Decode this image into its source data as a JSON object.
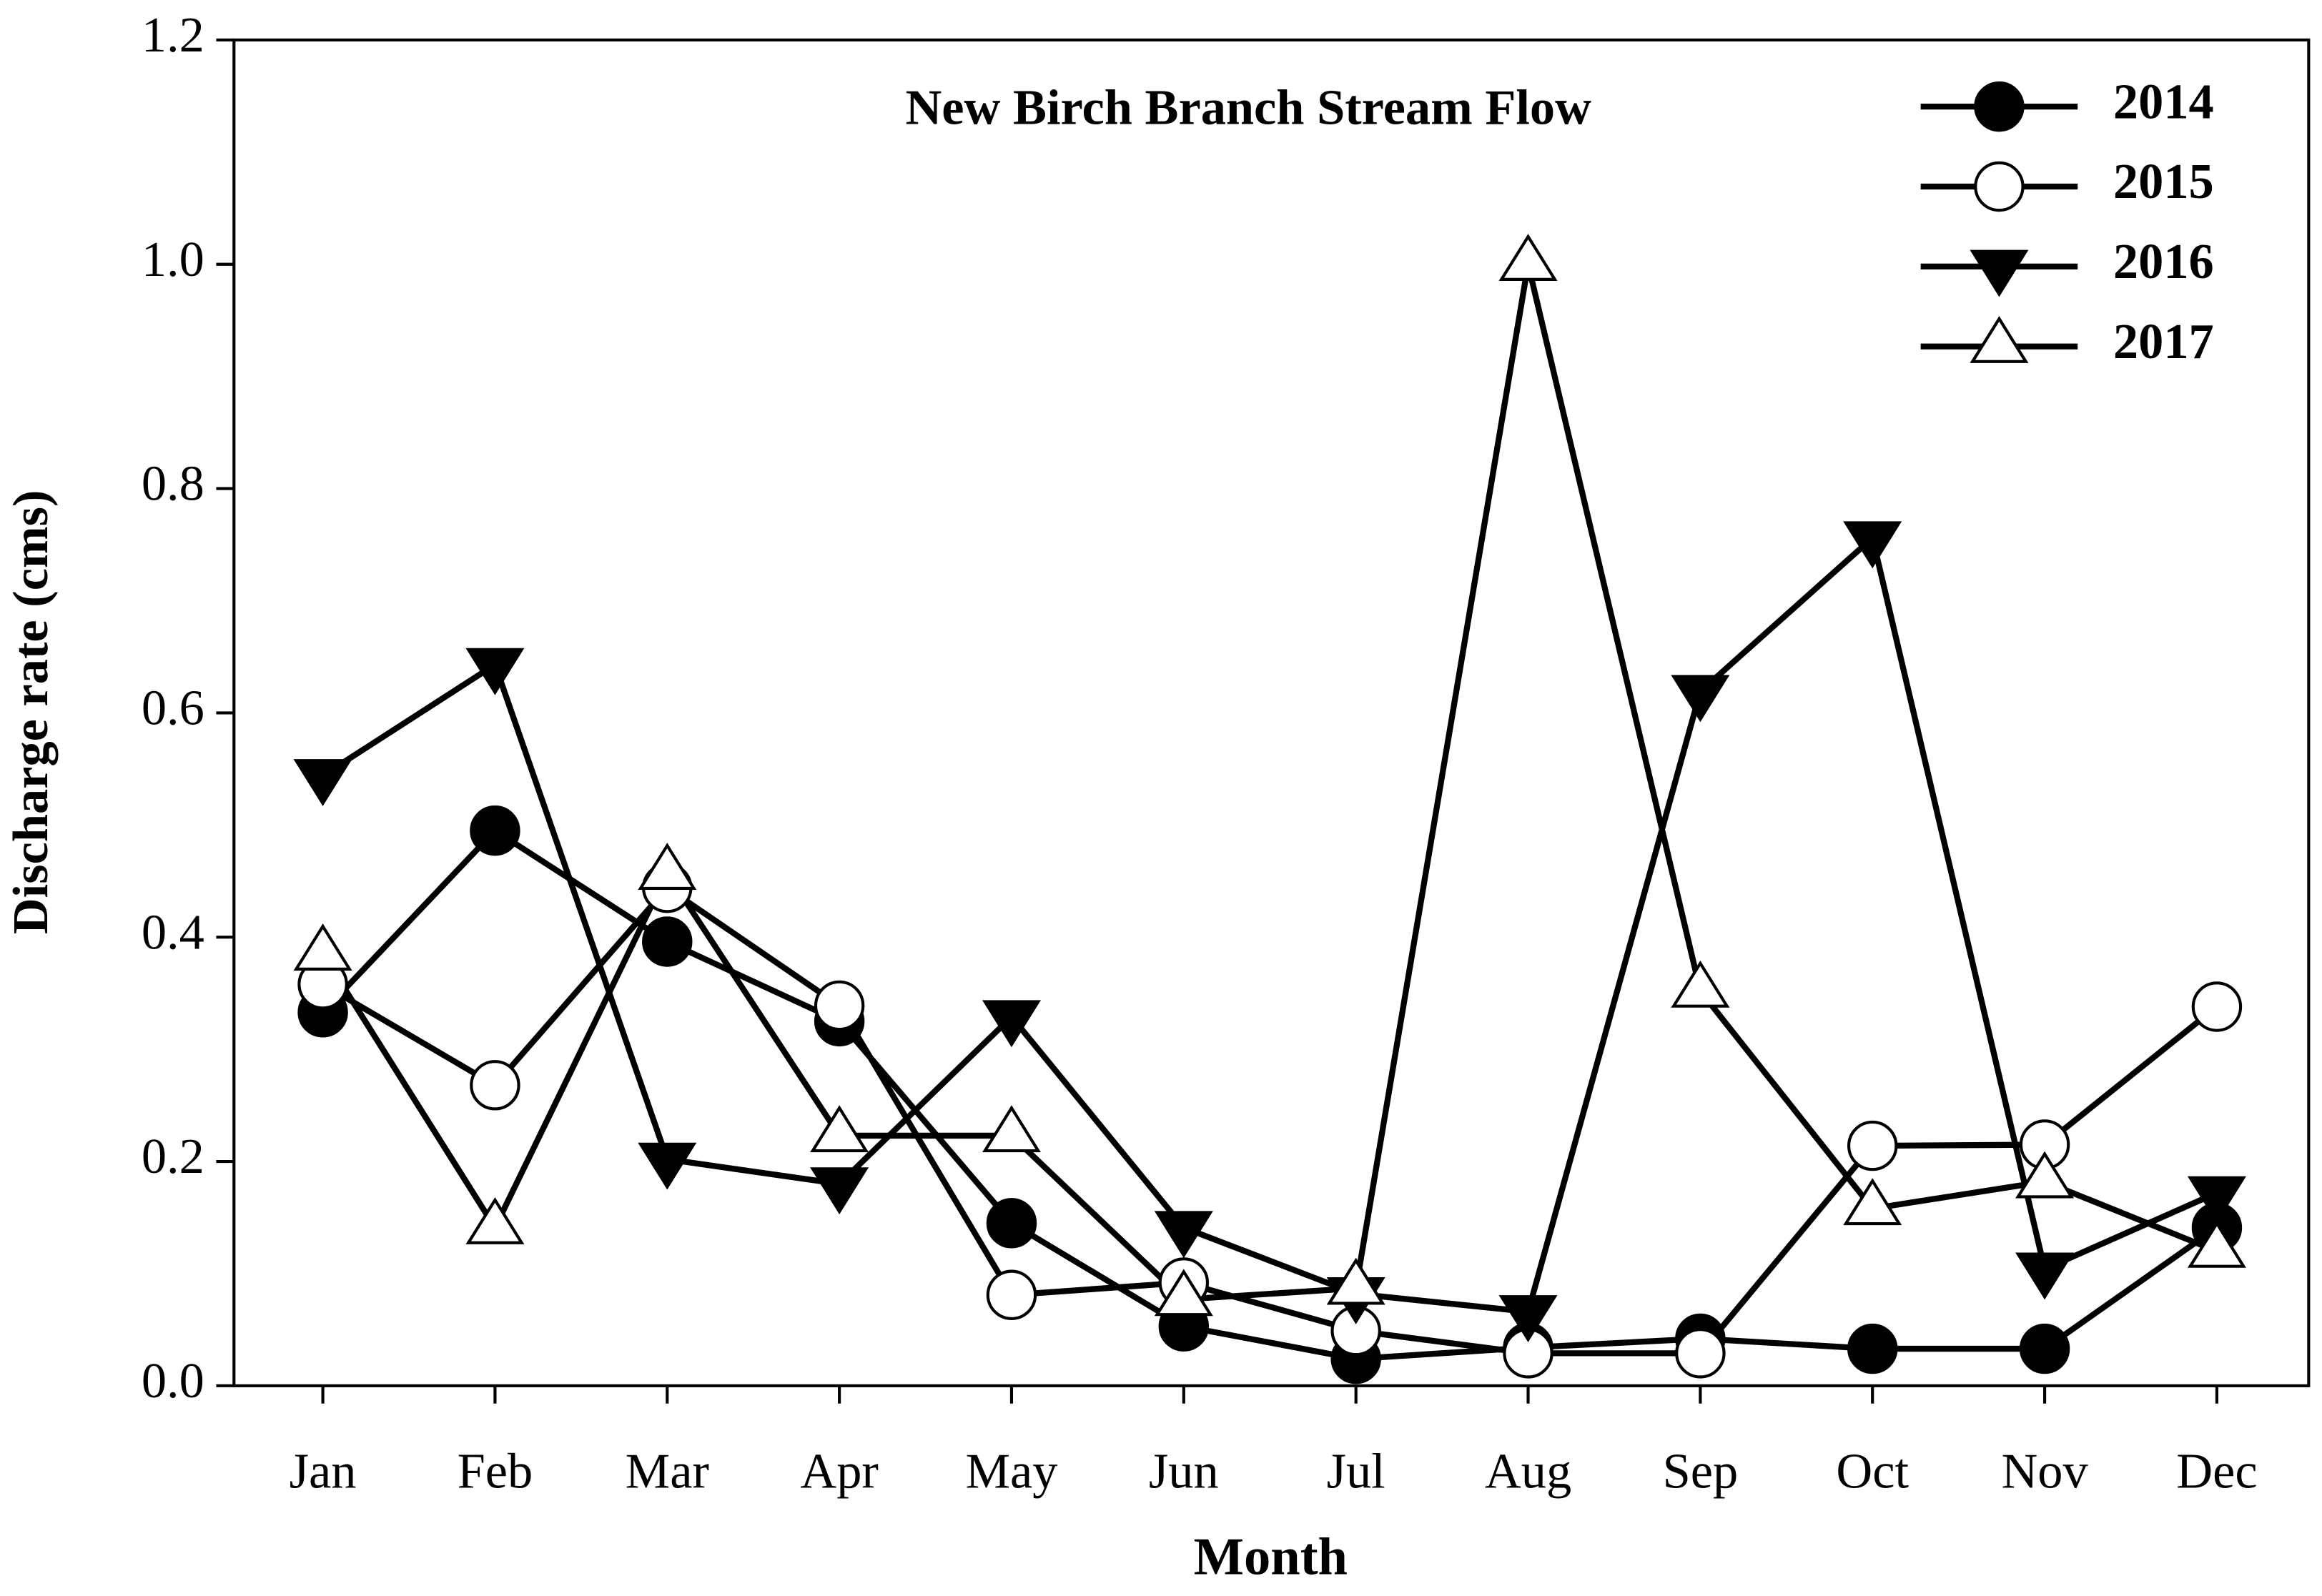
{
  "chart_data": {
    "type": "line",
    "title": "New Birch Branch Stream Flow",
    "xlabel": "Month",
    "ylabel": "Discharge rate (cms)",
    "categories": [
      "Jan",
      "Feb",
      "Mar",
      "Apr",
      "May",
      "Jun",
      "Jul",
      "Aug",
      "Sep",
      "Oct",
      "Nov",
      "Dec"
    ],
    "ylim": [
      0,
      1.2
    ],
    "yticks": [
      {
        "value": 0,
        "label": "0.0"
      },
      {
        "value": 0.2,
        "label": "0.2"
      },
      {
        "value": 0.4,
        "label": "0.4"
      },
      {
        "value": 0.6,
        "label": "0.6"
      },
      {
        "value": 0.8,
        "label": "0.8"
      },
      {
        "value": 1,
        "label": "1.0"
      },
      1.2
    ],
    "legend": "upper right",
    "series": [
      {
        "name": "2014",
        "color": "#000000",
        "marker": "filled-circle",
        "values": [
          0.333,
          0.495,
          0.396,
          0.325,
          0.145,
          0.053,
          0.024,
          0.034,
          0.042,
          0.033,
          0.033,
          0.141
        ]
      },
      {
        "name": "2015",
        "color": "#000000",
        "marker": "open-circle",
        "values": [
          0.358,
          0.268,
          0.444,
          0.339,
          0.081,
          0.092,
          0.049,
          0.029,
          0.029,
          0.214,
          0.215,
          0.338
        ]
      },
      {
        "name": "2016",
        "color": "#000000",
        "marker": "filled-triangle-down",
        "values": [
          0.544,
          0.643,
          0.202,
          0.18,
          0.329,
          0.141,
          0.082,
          0.066,
          0.619,
          0.756,
          0.104,
          0.172
        ]
      },
      {
        "name": "2017",
        "color": "#000000",
        "marker": "open-triangle-up",
        "values": [
          0.385,
          0.141,
          0.457,
          0.223,
          0.223,
          0.077,
          0.087,
          1.0,
          0.352,
          0.158,
          0.182,
          0.12
        ]
      }
    ]
  }
}
